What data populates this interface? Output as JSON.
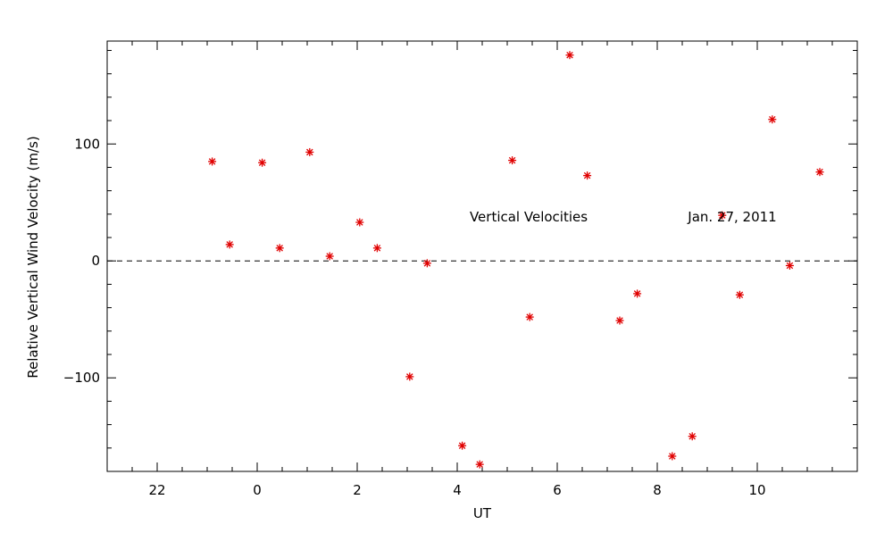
{
  "chart_data": {
    "type": "scatter",
    "xlabel": "UT",
    "ylabel": "Relative Vertical Wind Velocity (m/s)",
    "annotations": [
      "Vertical Velocities",
      "Jan. 27, 2011"
    ],
    "xlim": [
      21,
      36
    ],
    "ylim": [
      -180,
      188
    ],
    "xticks": [
      {
        "value": 22,
        "label": "22"
      },
      {
        "value": 24,
        "label": "0"
      },
      {
        "value": 26,
        "label": "2"
      },
      {
        "value": 28,
        "label": "4"
      },
      {
        "value": 30,
        "label": "6"
      },
      {
        "value": 32,
        "label": "8"
      },
      {
        "value": 34,
        "label": "10"
      }
    ],
    "yticks": [
      {
        "value": -100,
        "label": "−100"
      },
      {
        "value": 0,
        "label": "0"
      },
      {
        "value": 100,
        "label": "100"
      }
    ],
    "reference_line": {
      "y": 0,
      "style": "dashed"
    },
    "grid": false,
    "marker": "asterisk",
    "color": "#e00000",
    "points": [
      {
        "x": 23.1,
        "y": 85
      },
      {
        "x": 23.45,
        "y": 14
      },
      {
        "x": 24.1,
        "y": 84
      },
      {
        "x": 24.45,
        "y": 11
      },
      {
        "x": 25.05,
        "y": 93
      },
      {
        "x": 25.45,
        "y": 4
      },
      {
        "x": 26.05,
        "y": 33
      },
      {
        "x": 26.4,
        "y": 11
      },
      {
        "x": 27.05,
        "y": -99
      },
      {
        "x": 27.4,
        "y": -2
      },
      {
        "x": 28.1,
        "y": -158
      },
      {
        "x": 28.45,
        "y": -174
      },
      {
        "x": 29.1,
        "y": 86
      },
      {
        "x": 29.45,
        "y": -48
      },
      {
        "x": 30.25,
        "y": 176
      },
      {
        "x": 30.6,
        "y": 73
      },
      {
        "x": 31.25,
        "y": -51
      },
      {
        "x": 31.6,
        "y": -28
      },
      {
        "x": 32.3,
        "y": -167
      },
      {
        "x": 32.7,
        "y": -150
      },
      {
        "x": 33.3,
        "y": 39
      },
      {
        "x": 33.65,
        "y": -29
      },
      {
        "x": 34.3,
        "y": 121
      },
      {
        "x": 34.65,
        "y": -4
      },
      {
        "x": 35.25,
        "y": 76
      }
    ]
  }
}
